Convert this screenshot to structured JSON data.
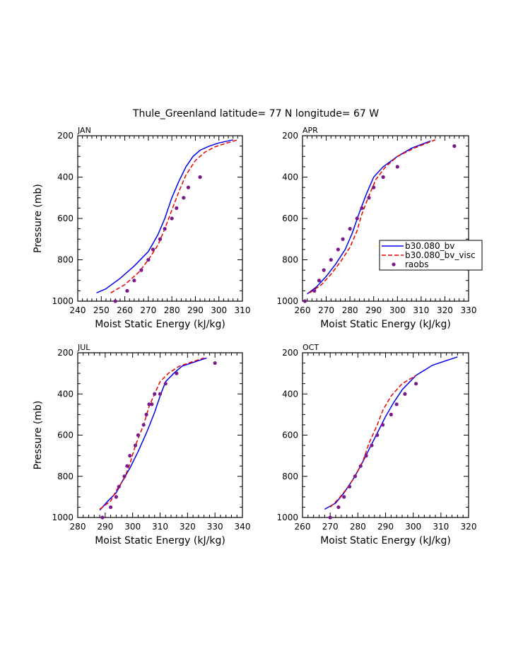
{
  "title": "Thule_Greenland  latitude= 77 N longitude= 67 W",
  "colors": {
    "bv": "#0000ee",
    "bv_visc": "#ee0000",
    "raobs": "#7a1a8a",
    "axis": "#000000"
  },
  "legend": {
    "entries": [
      {
        "label": "b30.080_bv",
        "style": "solid",
        "color": "#0000ee"
      },
      {
        "label": "b30.080_bv_visc",
        "style": "dashed",
        "color": "#ee0000"
      },
      {
        "label": "raobs",
        "style": "dot",
        "color": "#7a1a8a"
      }
    ]
  },
  "chart_data": [
    {
      "type": "line",
      "panel": "JAN",
      "xlabel": "Moist Static Energy (kJ/kg)",
      "ylabel": "Pressure (mb)",
      "xlim": [
        240,
        310
      ],
      "ylim": [
        200,
        1000
      ],
      "y_inverted": true,
      "xticks": [
        240,
        250,
        260,
        270,
        280,
        290,
        300,
        310
      ],
      "yticks": [
        200,
        400,
        600,
        800,
        1000
      ],
      "series": [
        {
          "name": "b30.080_bv",
          "x": [
            248,
            252,
            258,
            264,
            270,
            274,
            277,
            280,
            283,
            286,
            289,
            292,
            296,
            300,
            306
          ],
          "y": [
            960,
            940,
            890,
            830,
            760,
            680,
            600,
            500,
            420,
            350,
            300,
            270,
            250,
            235,
            220
          ]
        },
        {
          "name": "b30.080_bv_visc",
          "x": [
            254,
            260,
            266,
            270,
            274,
            277,
            280,
            283,
            286,
            290,
            294,
            298,
            302,
            308
          ],
          "y": [
            960,
            920,
            860,
            800,
            730,
            650,
            560,
            470,
            390,
            320,
            280,
            255,
            240,
            220
          ]
        },
        {
          "name": "raobs",
          "x": [
            256,
            261,
            264,
            267,
            270,
            272,
            275,
            277,
            280,
            282,
            285,
            287,
            292
          ],
          "y": [
            1000,
            950,
            900,
            850,
            800,
            750,
            700,
            650,
            600,
            550,
            500,
            450,
            400
          ]
        }
      ]
    },
    {
      "type": "line",
      "panel": "APR",
      "xlabel": "Moist Static Energy (kJ/kg)",
      "ylabel": "",
      "xlim": [
        260,
        330
      ],
      "ylim": [
        200,
        1000
      ],
      "y_inverted": true,
      "xticks": [
        260,
        270,
        280,
        290,
        300,
        310,
        320,
        330
      ],
      "yticks": [
        200,
        400,
        600,
        800,
        1000
      ],
      "series": [
        {
          "name": "b30.080_bv",
          "x": [
            262,
            266,
            270,
            274,
            278,
            281,
            284,
            287,
            290,
            294,
            300,
            306,
            314
          ],
          "y": [
            965,
            930,
            880,
            820,
            750,
            670,
            570,
            480,
            400,
            350,
            300,
            260,
            225
          ]
        },
        {
          "name": "b30.080_bv_visc",
          "x": [
            263,
            268,
            272,
            276,
            280,
            283,
            285,
            288,
            291,
            295,
            300,
            307,
            316
          ],
          "y": [
            960,
            920,
            870,
            810,
            740,
            660,
            580,
            490,
            410,
            350,
            300,
            260,
            220
          ]
        },
        {
          "name": "raobs",
          "x": [
            261,
            265,
            267,
            269,
            272,
            275,
            277,
            280,
            283,
            285,
            288,
            290,
            294,
            300,
            324
          ],
          "y": [
            1000,
            950,
            900,
            850,
            800,
            750,
            700,
            650,
            600,
            550,
            500,
            450,
            400,
            350,
            250
          ]
        }
      ]
    },
    {
      "type": "line",
      "panel": "JUL",
      "xlabel": "Moist Static Energy (kJ/kg)",
      "ylabel": "Pressure (mb)",
      "xlim": [
        280,
        340
      ],
      "ylim": [
        200,
        1000
      ],
      "y_inverted": true,
      "xticks": [
        280,
        290,
        300,
        310,
        320,
        330,
        340
      ],
      "yticks": [
        200,
        400,
        600,
        800,
        1000
      ],
      "series": [
        {
          "name": "b30.080_bv",
          "x": [
            288,
            291,
            294,
            296,
            299,
            302,
            305,
            308,
            310,
            312,
            315,
            318,
            327
          ],
          "y": [
            965,
            920,
            880,
            830,
            760,
            680,
            590,
            490,
            410,
            340,
            300,
            265,
            225
          ]
        },
        {
          "name": "b30.080_bv_visc",
          "x": [
            288,
            292,
            294,
            297,
            299,
            301,
            304,
            306,
            308,
            310,
            313,
            317,
            326
          ],
          "y": [
            960,
            920,
            870,
            810,
            740,
            650,
            550,
            460,
            400,
            340,
            300,
            265,
            225
          ]
        },
        {
          "name": "raobs",
          "x": [
            289,
            292,
            294,
            295,
            297,
            298,
            299,
            301,
            302,
            304,
            305,
            306,
            307,
            308,
            310,
            312,
            316,
            330
          ],
          "y": [
            1000,
            950,
            900,
            850,
            800,
            750,
            700,
            650,
            600,
            550,
            500,
            450,
            450,
            400,
            400,
            350,
            300,
            250
          ]
        }
      ]
    },
    {
      "type": "line",
      "panel": "OCT",
      "xlabel": "Moist Static Energy (kJ/kg)",
      "ylabel": "",
      "xlim": [
        260,
        320
      ],
      "ylim": [
        200,
        1000
      ],
      "y_inverted": true,
      "xticks": [
        260,
        270,
        280,
        290,
        300,
        310,
        320
      ],
      "yticks": [
        200,
        400,
        600,
        800,
        1000
      ],
      "series": [
        {
          "name": "b30.080_bv",
          "x": [
            268,
            272,
            275,
            278,
            281,
            284,
            287,
            290,
            293,
            296,
            301,
            307,
            316
          ],
          "y": [
            960,
            930,
            880,
            820,
            750,
            670,
            590,
            510,
            440,
            380,
            310,
            260,
            220
          ]
        },
        {
          "name": "b30.080_bv_visc",
          "x": [
            270,
            273,
            276,
            279,
            282,
            284,
            287,
            289,
            292,
            296,
            301
          ],
          "y": [
            950,
            910,
            860,
            800,
            720,
            640,
            550,
            480,
            410,
            350,
            310
          ]
        },
        {
          "name": "raobs",
          "x": [
            270,
            273,
            275,
            277,
            279,
            281,
            283,
            285,
            287,
            289,
            292,
            294,
            297,
            301
          ],
          "y": [
            1000,
            950,
            900,
            850,
            800,
            750,
            700,
            650,
            600,
            550,
            500,
            450,
            400,
            350
          ]
        }
      ]
    }
  ]
}
